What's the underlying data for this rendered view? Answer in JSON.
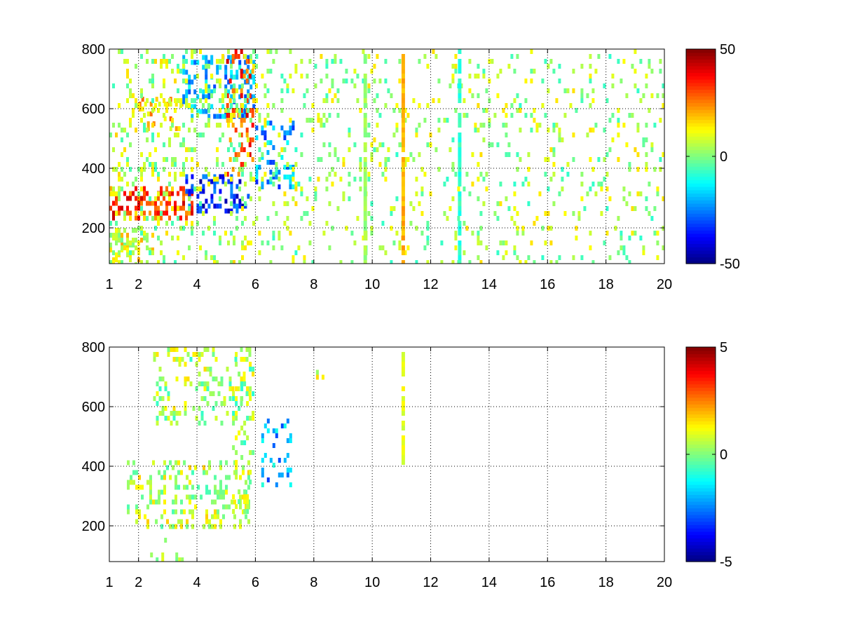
{
  "chart_data": [
    {
      "type": "heatmap",
      "title": "",
      "xlabel": "",
      "ylabel": "",
      "xlim": [
        1,
        20
      ],
      "ylim": [
        80,
        800
      ],
      "xticks": [
        1,
        2,
        4,
        6,
        8,
        10,
        12,
        14,
        16,
        18,
        20
      ],
      "yticks": [
        200,
        400,
        600,
        800
      ],
      "grid": true,
      "colormap": "jet",
      "color_range": [
        -50,
        50
      ],
      "colorbar_ticks": [
        -50,
        0,
        50
      ],
      "regions": [
        {
          "x": [
            1.0,
            3.8
          ],
          "y": [
            240,
            340
          ],
          "value": 32,
          "density": 0.85
        },
        {
          "x": [
            3.6,
            5.8
          ],
          "y": [
            250,
            380
          ],
          "value": -35,
          "density": 0.75
        },
        {
          "x": [
            2.0,
            3.5
          ],
          "y": [
            530,
            640
          ],
          "value": 18,
          "density": 0.6
        },
        {
          "x": [
            3.5,
            5.9
          ],
          "y": [
            580,
            780
          ],
          "value": -20,
          "density": 0.6
        },
        {
          "x": [
            5.0,
            5.9
          ],
          "y": [
            380,
            800
          ],
          "value": 30,
          "density": 0.5
        },
        {
          "x": [
            6.0,
            7.3
          ],
          "y": [
            330,
            560
          ],
          "value": -22,
          "density": 0.6
        },
        {
          "x": [
            1.0,
            2.5
          ],
          "y": [
            80,
            200
          ],
          "value": 10,
          "density": 0.5
        },
        {
          "x": [
            1.0,
            6.0
          ],
          "y": [
            80,
            800
          ],
          "value": 5,
          "density": 0.35
        },
        {
          "x": [
            6.0,
            20.0
          ],
          "y": [
            80,
            800
          ],
          "value": 4,
          "density": 0.22
        }
      ],
      "stripes": [
        {
          "x": 11.05,
          "y": [
            80,
            800
          ],
          "value": 20
        },
        {
          "x": 12.98,
          "y": [
            80,
            800
          ],
          "value": -8
        },
        {
          "x": 9.75,
          "y": [
            80,
            800
          ],
          "value": 3
        }
      ]
    },
    {
      "type": "heatmap",
      "title": "",
      "xlabel": "",
      "ylabel": "",
      "xlim": [
        1,
        20
      ],
      "ylim": [
        80,
        800
      ],
      "xticks": [
        1,
        2,
        4,
        6,
        8,
        10,
        12,
        14,
        16,
        18,
        20
      ],
      "yticks": [
        200,
        400,
        600,
        800
      ],
      "grid": true,
      "colormap": "jet",
      "color_range": [
        -5,
        5
      ],
      "colorbar_ticks": [
        -5,
        0,
        5
      ],
      "regions": [
        {
          "x": [
            1.6,
            5.8
          ],
          "y": [
            200,
            420
          ],
          "value": 0.6,
          "density": 0.55
        },
        {
          "x": [
            2.5,
            5.8
          ],
          "y": [
            540,
            800
          ],
          "value": 0.4,
          "density": 0.4
        },
        {
          "x": [
            5.2,
            5.9
          ],
          "y": [
            250,
            800
          ],
          "value": 0.3,
          "density": 0.5
        },
        {
          "x": [
            6.2,
            7.2
          ],
          "y": [
            340,
            560
          ],
          "value": -2.0,
          "density": 0.5
        },
        {
          "x": [
            2.3,
            3.5
          ],
          "y": [
            90,
            160
          ],
          "value": 0.2,
          "density": 0.3
        },
        {
          "x": [
            7.5,
            8.3
          ],
          "y": [
            700,
            740
          ],
          "value": 0.5,
          "density": 0.3
        }
      ],
      "stripes": [
        {
          "x": 11.05,
          "y": [
            400,
            800
          ],
          "value": 1.0
        }
      ]
    }
  ]
}
